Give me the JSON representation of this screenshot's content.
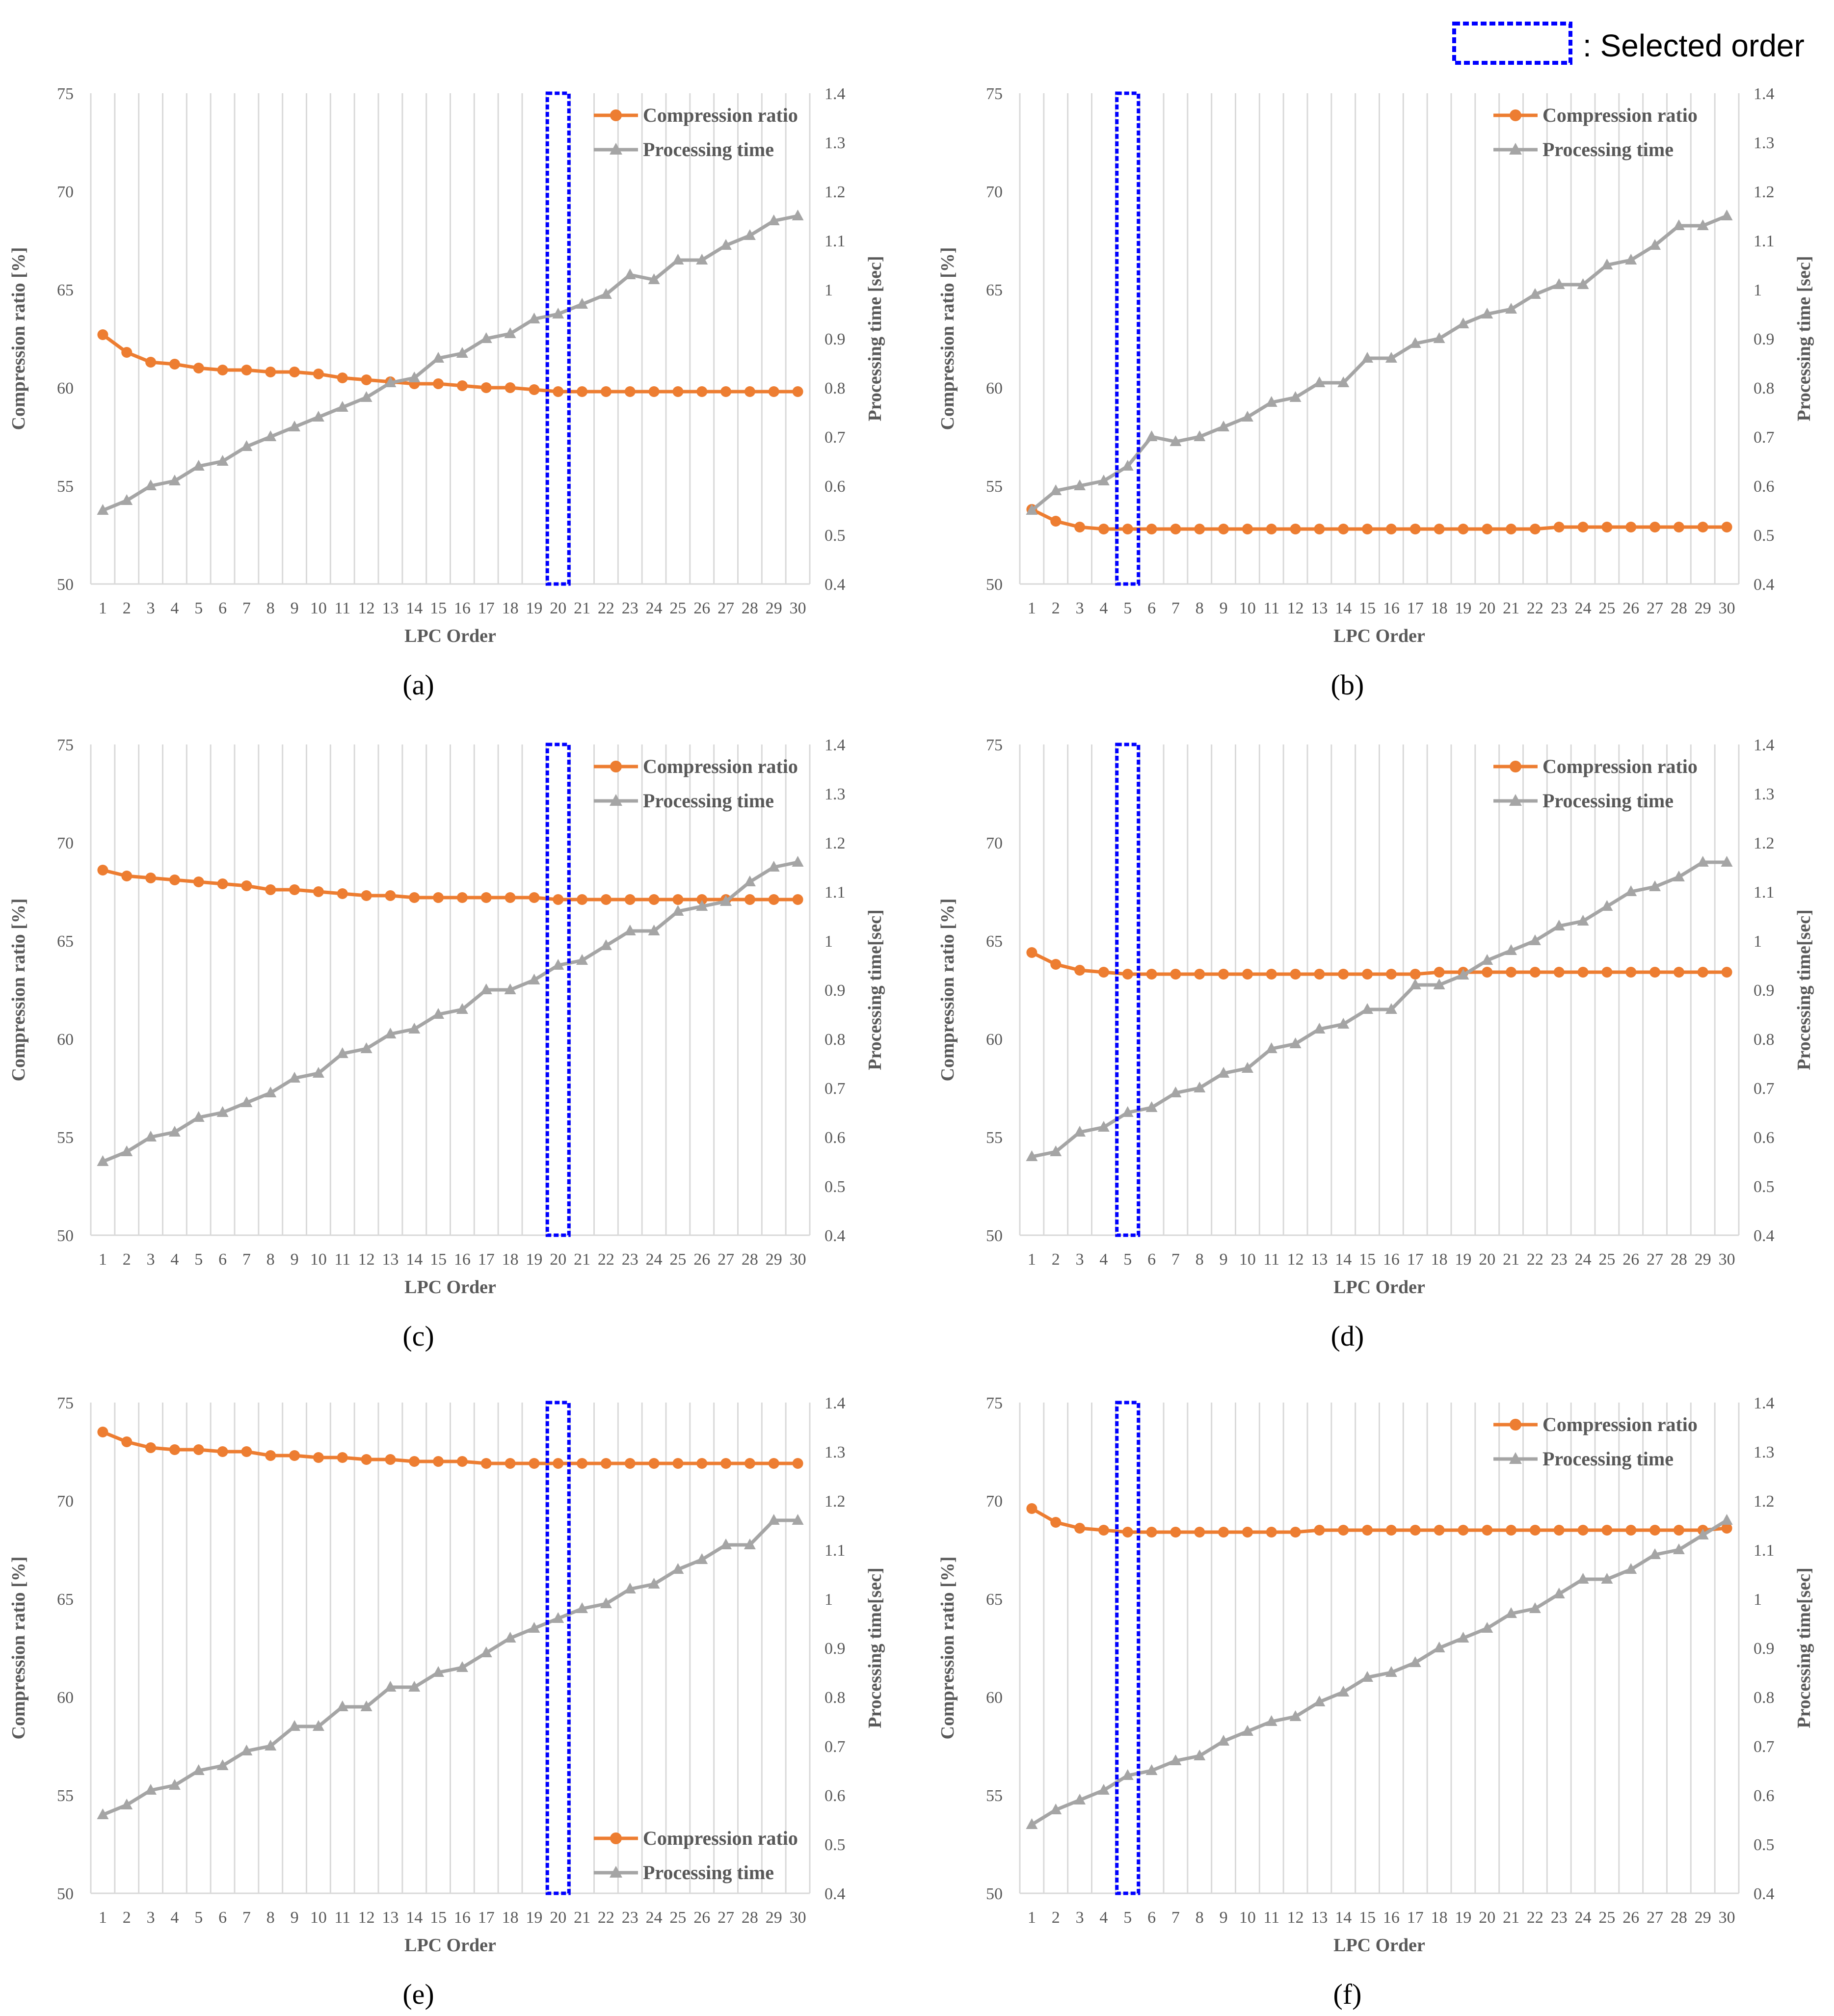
{
  "selected_legend": ": Selected order",
  "colors": {
    "ratio": "#ED7D31",
    "time": "#A5A5A5",
    "grid": "#D9D9D9",
    "selected": "#0000FF",
    "text": "#595959"
  },
  "chart_data": [
    {
      "type": "line",
      "caption": "(a)",
      "xlabel": "LPC Order",
      "ylabel": "Compression ratio [%]",
      "ylabel2": "Processing time [sec]",
      "categories": [
        1,
        2,
        3,
        4,
        5,
        6,
        7,
        8,
        9,
        10,
        11,
        12,
        13,
        14,
        15,
        16,
        17,
        18,
        19,
        20,
        21,
        22,
        23,
        24,
        25,
        26,
        27,
        28,
        29,
        30
      ],
      "ylim": [
        50,
        75
      ],
      "yticks": [
        50,
        55,
        60,
        65,
        70,
        75
      ],
      "y2lim": [
        0.4,
        1.4
      ],
      "y2ticks": [
        "0.4",
        "0.5",
        "0.6",
        "0.7",
        "0.8",
        "0.9",
        "1",
        "1.1",
        "1.2",
        "1.3",
        "1.4"
      ],
      "selected_order": 20,
      "legend_position": "top-right",
      "series": [
        {
          "name": "Compression ratio",
          "axis": "left",
          "marker": "circle",
          "values": [
            62.7,
            61.8,
            61.3,
            61.2,
            61.0,
            60.9,
            60.9,
            60.8,
            60.8,
            60.7,
            60.5,
            60.4,
            60.3,
            60.2,
            60.2,
            60.1,
            60.0,
            60.0,
            59.9,
            59.8,
            59.8,
            59.8,
            59.8,
            59.8,
            59.8,
            59.8,
            59.8,
            59.8,
            59.8,
            59.8
          ]
        },
        {
          "name": "Processing time",
          "axis": "right",
          "marker": "triangle",
          "values": [
            0.55,
            0.57,
            0.6,
            0.61,
            0.64,
            0.65,
            0.68,
            0.7,
            0.72,
            0.74,
            0.76,
            0.78,
            0.81,
            0.82,
            0.86,
            0.87,
            0.9,
            0.91,
            0.94,
            0.95,
            0.97,
            0.99,
            1.03,
            1.02,
            1.06,
            1.06,
            1.09,
            1.11,
            1.14,
            1.15
          ]
        }
      ]
    },
    {
      "type": "line",
      "caption": "(b)",
      "xlabel": "LPC Order",
      "ylabel": "Compression ratio [%]",
      "ylabel2": "Processing time [sec]",
      "categories": [
        1,
        2,
        3,
        4,
        5,
        6,
        7,
        8,
        9,
        10,
        11,
        12,
        13,
        14,
        15,
        16,
        17,
        18,
        19,
        20,
        21,
        22,
        23,
        24,
        25,
        26,
        27,
        28,
        29,
        30
      ],
      "ylim": [
        50,
        75
      ],
      "yticks": [
        50,
        55,
        60,
        65,
        70,
        75
      ],
      "y2lim": [
        0.4,
        1.4
      ],
      "y2ticks": [
        "0.4",
        "0.5",
        "0.6",
        "0.7",
        "0.8",
        "0.9",
        "1",
        "1.1",
        "1.2",
        "1.3",
        "1.4"
      ],
      "selected_order": 5,
      "legend_position": "top-right",
      "series": [
        {
          "name": "Compression ratio",
          "axis": "left",
          "marker": "circle",
          "values": [
            53.8,
            53.2,
            52.9,
            52.8,
            52.8,
            52.8,
            52.8,
            52.8,
            52.8,
            52.8,
            52.8,
            52.8,
            52.8,
            52.8,
            52.8,
            52.8,
            52.8,
            52.8,
            52.8,
            52.8,
            52.8,
            52.8,
            52.9,
            52.9,
            52.9,
            52.9,
            52.9,
            52.9,
            52.9,
            52.9
          ]
        },
        {
          "name": "Processing time",
          "axis": "right",
          "marker": "triangle",
          "values": [
            0.55,
            0.59,
            0.6,
            0.61,
            0.64,
            0.7,
            0.69,
            0.7,
            0.72,
            0.74,
            0.77,
            0.78,
            0.81,
            0.81,
            0.86,
            0.86,
            0.89,
            0.9,
            0.93,
            0.95,
            0.96,
            0.99,
            1.01,
            1.01,
            1.05,
            1.06,
            1.09,
            1.13,
            1.13,
            1.15
          ]
        }
      ]
    },
    {
      "type": "line",
      "caption": "(c)",
      "xlabel": "LPC Order",
      "ylabel": "Compression ratio [%]",
      "ylabel2": "Processing time[sec]",
      "categories": [
        1,
        2,
        3,
        4,
        5,
        6,
        7,
        8,
        9,
        10,
        11,
        12,
        13,
        14,
        15,
        16,
        17,
        18,
        19,
        20,
        21,
        22,
        23,
        24,
        25,
        26,
        27,
        28,
        29,
        30
      ],
      "ylim": [
        50,
        75
      ],
      "yticks": [
        50,
        55,
        60,
        65,
        70,
        75
      ],
      "y2lim": [
        0.4,
        1.4
      ],
      "y2ticks": [
        "0.4",
        "0.5",
        "0.6",
        "0.7",
        "0.8",
        "0.9",
        "1",
        "1.1",
        "1.2",
        "1.3",
        "1.4"
      ],
      "selected_order": 20,
      "legend_position": "top-right",
      "series": [
        {
          "name": "Compression ratio",
          "axis": "left",
          "marker": "circle",
          "values": [
            68.6,
            68.3,
            68.2,
            68.1,
            68.0,
            67.9,
            67.8,
            67.6,
            67.6,
            67.5,
            67.4,
            67.3,
            67.3,
            67.2,
            67.2,
            67.2,
            67.2,
            67.2,
            67.2,
            67.1,
            67.1,
            67.1,
            67.1,
            67.1,
            67.1,
            67.1,
            67.1,
            67.1,
            67.1,
            67.1
          ]
        },
        {
          "name": "Processing time",
          "axis": "right",
          "marker": "triangle",
          "values": [
            0.55,
            0.57,
            0.6,
            0.61,
            0.64,
            0.65,
            0.67,
            0.69,
            0.72,
            0.73,
            0.77,
            0.78,
            0.81,
            0.82,
            0.85,
            0.86,
            0.9,
            0.9,
            0.92,
            0.95,
            0.96,
            0.99,
            1.02,
            1.02,
            1.06,
            1.07,
            1.08,
            1.12,
            1.15,
            1.16
          ]
        }
      ]
    },
    {
      "type": "line",
      "caption": "(d)",
      "xlabel": "LPC Order",
      "ylabel": "Compression ratio [%]",
      "ylabel2": "Processing time[sec]",
      "categories": [
        1,
        2,
        3,
        4,
        5,
        6,
        7,
        8,
        9,
        10,
        11,
        12,
        13,
        14,
        15,
        16,
        17,
        18,
        19,
        20,
        21,
        22,
        23,
        24,
        25,
        26,
        27,
        28,
        29,
        30
      ],
      "ylim": [
        50,
        75
      ],
      "yticks": [
        50,
        55,
        60,
        65,
        70,
        75
      ],
      "y2lim": [
        0.4,
        1.4
      ],
      "y2ticks": [
        "0.4",
        "0.5",
        "0.6",
        "0.7",
        "0.8",
        "0.9",
        "1",
        "1.1",
        "1.2",
        "1.3",
        "1.4"
      ],
      "selected_order": 5,
      "legend_position": "top-right",
      "series": [
        {
          "name": "Compression ratio",
          "axis": "left",
          "marker": "circle",
          "values": [
            64.4,
            63.8,
            63.5,
            63.4,
            63.3,
            63.3,
            63.3,
            63.3,
            63.3,
            63.3,
            63.3,
            63.3,
            63.3,
            63.3,
            63.3,
            63.3,
            63.3,
            63.4,
            63.4,
            63.4,
            63.4,
            63.4,
            63.4,
            63.4,
            63.4,
            63.4,
            63.4,
            63.4,
            63.4,
            63.4
          ]
        },
        {
          "name": "Processing time",
          "axis": "right",
          "marker": "triangle",
          "values": [
            0.56,
            0.57,
            0.61,
            0.62,
            0.65,
            0.66,
            0.69,
            0.7,
            0.73,
            0.74,
            0.78,
            0.79,
            0.82,
            0.83,
            0.86,
            0.86,
            0.91,
            0.91,
            0.93,
            0.96,
            0.98,
            1.0,
            1.03,
            1.04,
            1.07,
            1.1,
            1.11,
            1.13,
            1.16,
            1.16
          ]
        }
      ]
    },
    {
      "type": "line",
      "caption": "(e)",
      "xlabel": "LPC Order",
      "ylabel": "Compression ratio [%]",
      "ylabel2": "Processing time[sec]",
      "categories": [
        1,
        2,
        3,
        4,
        5,
        6,
        7,
        8,
        9,
        10,
        11,
        12,
        13,
        14,
        15,
        16,
        17,
        18,
        19,
        20,
        21,
        22,
        23,
        24,
        25,
        26,
        27,
        28,
        29,
        30
      ],
      "ylim": [
        50,
        75
      ],
      "yticks": [
        50,
        55,
        60,
        65,
        70,
        75
      ],
      "y2lim": [
        0.4,
        1.4
      ],
      "y2ticks": [
        "0.4",
        "0.5",
        "0.6",
        "0.7",
        "0.8",
        "0.9",
        "1",
        "1.1",
        "1.2",
        "1.3",
        "1.4"
      ],
      "selected_order": 20,
      "legend_position": "bottom-right",
      "series": [
        {
          "name": "Compression ratio",
          "axis": "left",
          "marker": "circle",
          "values": [
            73.5,
            73.0,
            72.7,
            72.6,
            72.6,
            72.5,
            72.5,
            72.3,
            72.3,
            72.2,
            72.2,
            72.1,
            72.1,
            72.0,
            72.0,
            72.0,
            71.9,
            71.9,
            71.9,
            71.9,
            71.9,
            71.9,
            71.9,
            71.9,
            71.9,
            71.9,
            71.9,
            71.9,
            71.9,
            71.9
          ]
        },
        {
          "name": "Processing time",
          "axis": "right",
          "marker": "triangle",
          "values": [
            0.56,
            0.58,
            0.61,
            0.62,
            0.65,
            0.66,
            0.69,
            0.7,
            0.74,
            0.74,
            0.78,
            0.78,
            0.82,
            0.82,
            0.85,
            0.86,
            0.89,
            0.92,
            0.94,
            0.96,
            0.98,
            0.99,
            1.02,
            1.03,
            1.06,
            1.08,
            1.11,
            1.11,
            1.16,
            1.16
          ]
        }
      ]
    },
    {
      "type": "line",
      "caption": "(f)",
      "xlabel": "LPC Order",
      "ylabel": "Compression ratio [%]",
      "ylabel2": "Processing time[sec]",
      "categories": [
        1,
        2,
        3,
        4,
        5,
        6,
        7,
        8,
        9,
        10,
        11,
        12,
        13,
        14,
        15,
        16,
        17,
        18,
        19,
        20,
        21,
        22,
        23,
        24,
        25,
        26,
        27,
        28,
        29,
        30
      ],
      "ylim": [
        50,
        75
      ],
      "yticks": [
        50,
        55,
        60,
        65,
        70,
        75
      ],
      "y2lim": [
        0.4,
        1.4
      ],
      "y2ticks": [
        "0.4",
        "0.5",
        "0.6",
        "0.7",
        "0.8",
        "0.9",
        "1",
        "1.1",
        "1.2",
        "1.3",
        "1.4"
      ],
      "selected_order": 5,
      "legend_position": "top-right",
      "series": [
        {
          "name": "Compression ratio",
          "axis": "left",
          "marker": "circle",
          "values": [
            69.6,
            68.9,
            68.6,
            68.5,
            68.4,
            68.4,
            68.4,
            68.4,
            68.4,
            68.4,
            68.4,
            68.4,
            68.5,
            68.5,
            68.5,
            68.5,
            68.5,
            68.5,
            68.5,
            68.5,
            68.5,
            68.5,
            68.5,
            68.5,
            68.5,
            68.5,
            68.5,
            68.5,
            68.5,
            68.6
          ]
        },
        {
          "name": "Processing time",
          "axis": "right",
          "marker": "triangle",
          "values": [
            0.54,
            0.57,
            0.59,
            0.61,
            0.64,
            0.65,
            0.67,
            0.68,
            0.71,
            0.73,
            0.75,
            0.76,
            0.79,
            0.81,
            0.84,
            0.85,
            0.87,
            0.9,
            0.92,
            0.94,
            0.97,
            0.98,
            1.01,
            1.04,
            1.04,
            1.06,
            1.09,
            1.1,
            1.13,
            1.16
          ]
        }
      ]
    }
  ]
}
